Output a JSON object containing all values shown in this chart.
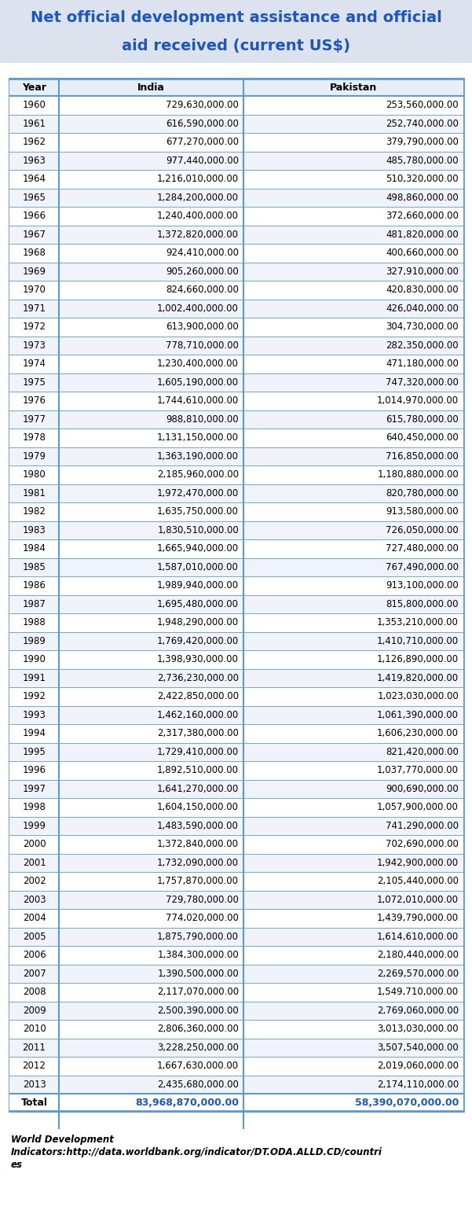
{
  "title_line1": "Net official development assistance and official",
  "title_line2": "aid received (current US$)",
  "title_color": "#1a56c4",
  "title_bg_color": "#dce3ef",
  "page_bg_color": "#ffffff",
  "table_bg": "#ffffff",
  "header_bg": "#e8eef5",
  "border_color": "#5b9bd5",
  "col_headers": [
    "Year",
    "India",
    "Pakistan"
  ],
  "rows": [
    [
      "1960",
      "729,630,000.00",
      "253,560,000.00"
    ],
    [
      "1961",
      "616,590,000.00",
      "252,740,000.00"
    ],
    [
      "1962",
      "677,270,000.00",
      "379,790,000.00"
    ],
    [
      "1963",
      "977,440,000.00",
      "485,780,000.00"
    ],
    [
      "1964",
      "1,216,010,000.00",
      "510,320,000.00"
    ],
    [
      "1965",
      "1,284,200,000.00",
      "498,860,000.00"
    ],
    [
      "1966",
      "1,240,400,000.00",
      "372,660,000.00"
    ],
    [
      "1967",
      "1,372,820,000.00",
      "481,820,000.00"
    ],
    [
      "1968",
      "924,410,000.00",
      "400,660,000.00"
    ],
    [
      "1969",
      "905,260,000.00",
      "327,910,000.00"
    ],
    [
      "1970",
      "824,660,000.00",
      "420,830,000.00"
    ],
    [
      "1971",
      "1,002,400,000.00",
      "426,040,000.00"
    ],
    [
      "1972",
      "613,900,000.00",
      "304,730,000.00"
    ],
    [
      "1973",
      "778,710,000.00",
      "282,350,000.00"
    ],
    [
      "1974",
      "1,230,400,000.00",
      "471,180,000.00"
    ],
    [
      "1975",
      "1,605,190,000.00",
      "747,320,000.00"
    ],
    [
      "1976",
      "1,744,610,000.00",
      "1,014,970,000.00"
    ],
    [
      "1977",
      "988,810,000.00",
      "615,780,000.00"
    ],
    [
      "1978",
      "1,131,150,000.00",
      "640,450,000.00"
    ],
    [
      "1979",
      "1,363,190,000.00",
      "716,850,000.00"
    ],
    [
      "1980",
      "2,185,960,000.00",
      "1,180,880,000.00"
    ],
    [
      "1981",
      "1,972,470,000.00",
      "820,780,000.00"
    ],
    [
      "1982",
      "1,635,750,000.00",
      "913,580,000.00"
    ],
    [
      "1983",
      "1,830,510,000.00",
      "726,050,000.00"
    ],
    [
      "1984",
      "1,665,940,000.00",
      "727,480,000.00"
    ],
    [
      "1985",
      "1,587,010,000.00",
      "767,490,000.00"
    ],
    [
      "1986",
      "1,989,940,000.00",
      "913,100,000.00"
    ],
    [
      "1987",
      "1,695,480,000.00",
      "815,800,000.00"
    ],
    [
      "1988",
      "1,948,290,000.00",
      "1,353,210,000.00"
    ],
    [
      "1989",
      "1,769,420,000.00",
      "1,410,710,000.00"
    ],
    [
      "1990",
      "1,398,930,000.00",
      "1,126,890,000.00"
    ],
    [
      "1991",
      "2,736,230,000.00",
      "1,419,820,000.00"
    ],
    [
      "1992",
      "2,422,850,000.00",
      "1,023,030,000.00"
    ],
    [
      "1993",
      "1,462,160,000.00",
      "1,061,390,000.00"
    ],
    [
      "1994",
      "2,317,380,000.00",
      "1,606,230,000.00"
    ],
    [
      "1995",
      "1,729,410,000.00",
      "821,420,000.00"
    ],
    [
      "1996",
      "1,892,510,000.00",
      "1,037,770,000.00"
    ],
    [
      "1997",
      "1,641,270,000.00",
      "900,690,000.00"
    ],
    [
      "1998",
      "1,604,150,000.00",
      "1,057,900,000.00"
    ],
    [
      "1999",
      "1,483,590,000.00",
      "741,290,000.00"
    ],
    [
      "2000",
      "1,372,840,000.00",
      "702,690,000.00"
    ],
    [
      "2001",
      "1,732,090,000.00",
      "1,942,900,000.00"
    ],
    [
      "2002",
      "1,757,870,000.00",
      "2,105,440,000.00"
    ],
    [
      "2003",
      "729,780,000.00",
      "1,072,010,000.00"
    ],
    [
      "2004",
      "774,020,000.00",
      "1,439,790,000.00"
    ],
    [
      "2005",
      "1,875,790,000.00",
      "1,614,610,000.00"
    ],
    [
      "2006",
      "1,384,300,000.00",
      "2,180,440,000.00"
    ],
    [
      "2007",
      "1,390,500,000.00",
      "2,269,570,000.00"
    ],
    [
      "2008",
      "2,117,070,000.00",
      "1,549,710,000.00"
    ],
    [
      "2009",
      "2,500,390,000.00",
      "2,769,060,000.00"
    ],
    [
      "2010",
      "2,806,360,000.00",
      "3,013,030,000.00"
    ],
    [
      "2011",
      "3,228,250,000.00",
      "3,507,540,000.00"
    ],
    [
      "2012",
      "1,667,630,000.00",
      "2,019,060,000.00"
    ],
    [
      "2013",
      "2,435,680,000.00",
      "2,174,110,000.00"
    ]
  ],
  "total_label": "Total",
  "total_india": "83,968,870,000.00",
  "total_pakistan": "58,390,070,000.00",
  "total_color": "#1a56c4",
  "footer_line1": "World Development",
  "footer_line2": "Indicators:http://data.worldbank.org/indicator/DT.ODA.ALLD.CD/countri",
  "footer_line3": "es",
  "footer_color": "#000000"
}
